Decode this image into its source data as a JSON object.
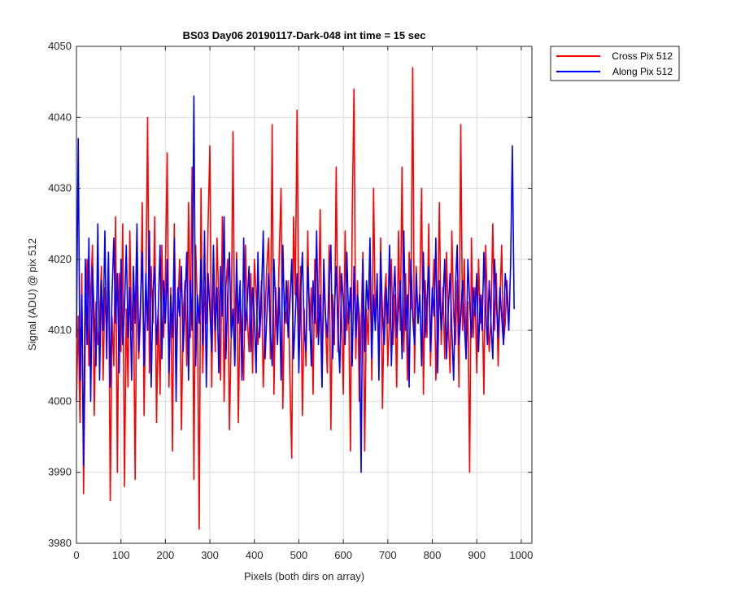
{
  "chart_data": {
    "type": "line",
    "title": "BS03 Day06 20190117-Dark-048 int time = 15 sec",
    "xlabel": "Pixels (both dirs on array)",
    "ylabel": "Signal (ADU) @ pix 512",
    "xlim": [
      0,
      1024
    ],
    "ylim": [
      3980,
      4050
    ],
    "xticks": [
      0,
      100,
      200,
      300,
      400,
      500,
      600,
      700,
      800,
      900,
      1000
    ],
    "yticks": [
      3980,
      3990,
      4000,
      4010,
      4020,
      4030,
      4040,
      4050
    ],
    "grid": true,
    "legend_position": "outside-top-right",
    "series": [
      {
        "name": "Cross Pix 512",
        "color": "#ff0000",
        "sampling": "every 4th pixel, approximated from image",
        "x_start": 0,
        "x_step": 4,
        "values": [
          4000,
          4012,
          3997,
          4018,
          3987,
          4010,
          4020,
          4005,
          4015,
          4022,
          3998,
          4014,
          4008,
          4011,
          4019,
          4003,
          4016,
          4009,
          4021,
          3986,
          4012,
          4005,
          4026,
          3990,
          4018,
          4007,
          4025,
          3988,
          4013,
          4002,
          4024,
          4010,
          4016,
          3989,
          4020,
          4006,
          4012,
          4028,
          3998,
          4015,
          4040,
          4004,
          4019,
          4011,
          4026,
          3997,
          4013,
          4001,
          4022,
          4009,
          4018,
          4035,
          4002,
          4016,
          3993,
          4025,
          4007,
          4013,
          4020,
          3996,
          4012,
          4017,
          4005,
          4028,
          4009,
          4033,
          3989,
          4022,
          4013,
          3982,
          4030,
          4004,
          4016,
          4011,
          4025,
          4036,
          4002,
          4019,
          4007,
          4023,
          4014,
          4003,
          4026,
          4000,
          4016,
          4020,
          3996,
          4010,
          4038,
          4005,
          4021,
          3997,
          4014,
          4010,
          4003,
          4022,
          4012,
          4007,
          4018,
          4004,
          4020,
          4015,
          4008,
          4011,
          4017,
          4002,
          4012,
          4019,
          4023,
          4006,
          4039,
          4001,
          4016,
          4009,
          4021,
          4030,
          3999,
          4014,
          4011,
          4017,
          4003,
          3992,
          4026,
          4015,
          4041,
          4008,
          4019,
          3998,
          4013,
          4005,
          4024,
          4010,
          4016,
          4001,
          4020,
          4009,
          4013,
          4027,
          4002,
          4018,
          4011,
          4004,
          4022,
          3996,
          4015,
          4008,
          4033,
          4007,
          4019,
          4012,
          4001,
          4024,
          4010,
          4014,
          3993,
          4026,
          4044,
          4006,
          4017,
          4000,
          4011,
          4021,
          3993,
          4013,
          4008,
          4020,
          4003,
          4030,
          4011,
          4016,
          4006,
          4023,
          3999,
          4014,
          4018,
          4005,
          4012,
          4020,
          4008,
          4015,
          4002,
          4024,
          4010,
          4033,
          4007,
          4018,
          4003,
          4021,
          4013,
          4047,
          4004,
          4019,
          4011,
          4016,
          4030,
          4001,
          4017,
          4009,
          4025,
          4005,
          4014,
          4020,
          4003,
          4012,
          4028,
          4008,
          4016,
          4006,
          4021,
          4011,
          4004,
          4024,
          4012,
          4008,
          4017,
          4002,
          4039,
          4010,
          4020,
          4006,
          4014,
          3990,
          4023,
          4009,
          4016,
          4004,
          4020,
          4011,
          4015,
          4001,
          4022,
          4013,
          4007,
          4012,
          4025,
          4010,
          4018,
          4005,
          4014,
          4022,
          4008,
          4011,
          4017,
          4010
        ]
      },
      {
        "name": "Along Pix 512",
        "color": "#0000ff",
        "sampling": "every 4th pixel, approximated from image",
        "x_start": 0,
        "x_step": 4,
        "values": [
          4009,
          4037,
          4003,
          4015,
          3991,
          4020,
          4008,
          4023,
          4000,
          4019,
          4012,
          4005,
          4025,
          4003,
          4017,
          4010,
          4024,
          4006,
          4021,
          4002,
          4015,
          4023,
          4011,
          4018,
          4004,
          4020,
          4008,
          4013,
          4022,
          4009,
          4016,
          4003,
          4019,
          4011,
          4025,
          4007,
          4014,
          4021,
          4005,
          4018,
          4010,
          4024,
          4002,
          4015,
          4019,
          4008,
          4013,
          4022,
          4006,
          4017,
          4011,
          4020,
          4004,
          4015,
          4009,
          4023,
          4000,
          4016,
          4012,
          4019,
          4007,
          4014,
          4021,
          4003,
          4017,
          4010,
          4043,
          4005,
          4015,
          4011,
          4020,
          4008,
          4024,
          4002,
          4018,
          4013,
          4007,
          4022,
          4010,
          4016,
          4004,
          4019,
          4012,
          4026,
          4006,
          4015,
          4021,
          4009,
          4013,
          4005,
          4020,
          4011,
          4017,
          4003,
          4023,
          4010,
          4014,
          4019,
          4007,
          4016,
          4012,
          4004,
          4021,
          4009,
          4015,
          4024,
          4006,
          4012,
          4018,
          4010,
          4005,
          4020,
          4013,
          4008,
          4016,
          4003,
          4022,
          4011,
          4017,
          4009,
          4014,
          4020,
          4006,
          4012,
          4018,
          4004,
          4015,
          4021,
          4010,
          4007,
          4019,
          4013,
          4005,
          4017,
          4011,
          4024,
          4008,
          4015,
          4002,
          4020,
          4012,
          4009,
          4016,
          4022,
          4006,
          4013,
          4019,
          4010,
          4004,
          4018,
          4014,
          4008,
          4021,
          4011,
          4016,
          4005,
          4019,
          4009,
          4015,
          4012,
          3990,
          4020,
          4007,
          4017,
          4013,
          4023,
          4006,
          4015,
          4010,
          4018,
          4003,
          4021,
          4012,
          4008,
          4016,
          4011,
          4022,
          4005,
          4014,
          4019,
          4009,
          4013,
          4017,
          4006,
          4024,
          4010,
          4015,
          4002,
          4020,
          4012,
          4008,
          4018,
          4011,
          4015,
          4005,
          4021,
          4009,
          4014,
          4019,
          4007,
          4016,
          4012,
          4023,
          4004,
          4017,
          4010,
          4014,
          4020,
          4006,
          4013,
          4018,
          4010,
          4003,
          4016,
          4022,
          4008,
          4012,
          4017,
          4011,
          4006,
          4020,
          4014,
          4009,
          4016,
          4012,
          4018,
          4007,
          4015,
          4010,
          4021,
          4013,
          4008,
          4017,
          4011,
          4006,
          4020,
          4014,
          4009,
          4016,
          4012,
          4008,
          4018,
          4015,
          4010,
          4019,
          4036,
          4013
        ]
      }
    ]
  }
}
